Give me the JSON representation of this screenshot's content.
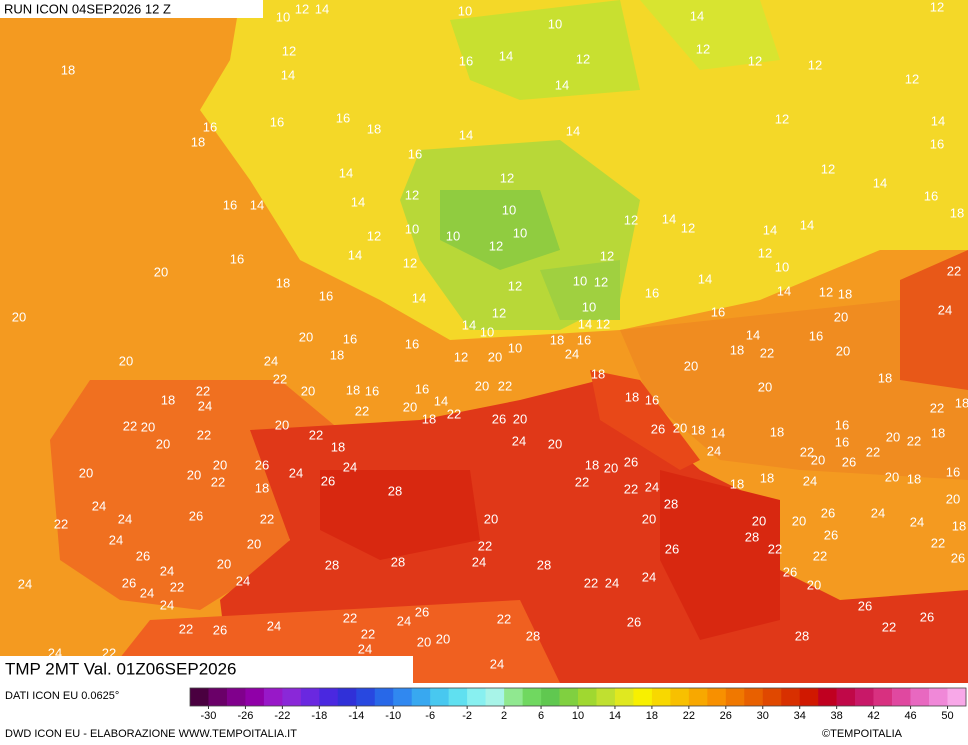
{
  "header": {
    "title": "RUN ICON 04SEP2026 12 Z"
  },
  "footer": {
    "title": "TMP 2MT Val. 01Z06SEP2026",
    "source": "DATI ICON EU 0.0625°",
    "credit": "DWD ICON EU - ELABORAZIONE WWW.TEMPOITALIA.IT",
    "copyright": "©TEMPOITALIA"
  },
  "map": {
    "labels": [
      12,
      14,
      10,
      10,
      10,
      14,
      12,
      12,
      14,
      16,
      14,
      12,
      12,
      12,
      12,
      12,
      14,
      18,
      16,
      18,
      16,
      16,
      18,
      14,
      14,
      12,
      14,
      16,
      16,
      12,
      12,
      14,
      16,
      18,
      14,
      14,
      16,
      14,
      12,
      10,
      12,
      14,
      12,
      14,
      14,
      12,
      10,
      10,
      12,
      10,
      12,
      14,
      12,
      10,
      22,
      20,
      16,
      14,
      12,
      18,
      16,
      12,
      10,
      12,
      14,
      16,
      14,
      12,
      18,
      24,
      20,
      12,
      10,
      16,
      20,
      14,
      10,
      14,
      12,
      14,
      16,
      16,
      20,
      16,
      18,
      16,
      10,
      20,
      24,
      18,
      12,
      18,
      22,
      20,
      20,
      24,
      22,
      20,
      18,
      16,
      16,
      20,
      22,
      18,
      20,
      18,
      20,
      22,
      18,
      24,
      20,
      14,
      18,
      22,
      22,
      18,
      16,
      22,
      18,
      26,
      20,
      22,
      20,
      22,
      20,
      22,
      26,
      20,
      18,
      14,
      18,
      16,
      18,
      24,
      20,
      18,
      20,
      22,
      16,
      24,
      22,
      20,
      20,
      26,
      22,
      20,
      26,
      24,
      24,
      18,
      20,
      26,
      20,
      18,
      20,
      22,
      20,
      26,
      28,
      22,
      22,
      24,
      18,
      18,
      24,
      16,
      24,
      18,
      26,
      24,
      22,
      28,
      22,
      20,
      20,
      20,
      20,
      26,
      24,
      24,
      20,
      18,
      26,
      28,
      24,
      20,
      22,
      26,
      22,
      22,
      22,
      26,
      26,
      28,
      28,
      24,
      28,
      20,
      24,
      24,
      26,
      24,
      22,
      24,
      22,
      24,
      24,
      26,
      20,
      26,
      26,
      22,
      24,
      26,
      22,
      24,
      22,
      26,
      26,
      24,
      22,
      22,
      20,
      20,
      28,
      28,
      24,
      22,
      24,
      24
    ]
  },
  "colorbar": {
    "lim": [
      -32,
      52
    ],
    "ticks": [
      -30,
      -26,
      -22,
      -18,
      -14,
      -10,
      -6,
      -2,
      2,
      6,
      10,
      14,
      18,
      22,
      26,
      30,
      34,
      38,
      42,
      46,
      50
    ],
    "colors": [
      "#4a0040",
      "#6a0068",
      "#80008c",
      "#9000a8",
      "#9818c8",
      "#8a28d8",
      "#6a28e0",
      "#4a28e0",
      "#3030d8",
      "#2848e0",
      "#2868e8",
      "#3088f0",
      "#38a8f0",
      "#48c8f0",
      "#60e0f0",
      "#88f0f0",
      "#a8f4e8",
      "#90e890",
      "#70d860",
      "#60c850",
      "#80d040",
      "#a0d830",
      "#c0e030",
      "#e0e820",
      "#f8f000",
      "#f8d800",
      "#f8c000",
      "#f8a800",
      "#f89000",
      "#f07800",
      "#e86000",
      "#e04800",
      "#d83000",
      "#d01800",
      "#c00020",
      "#c00848",
      "#c81868",
      "#d83080",
      "#e048a0",
      "#e868c0",
      "#f088d8",
      "#f8a8e8"
    ]
  }
}
